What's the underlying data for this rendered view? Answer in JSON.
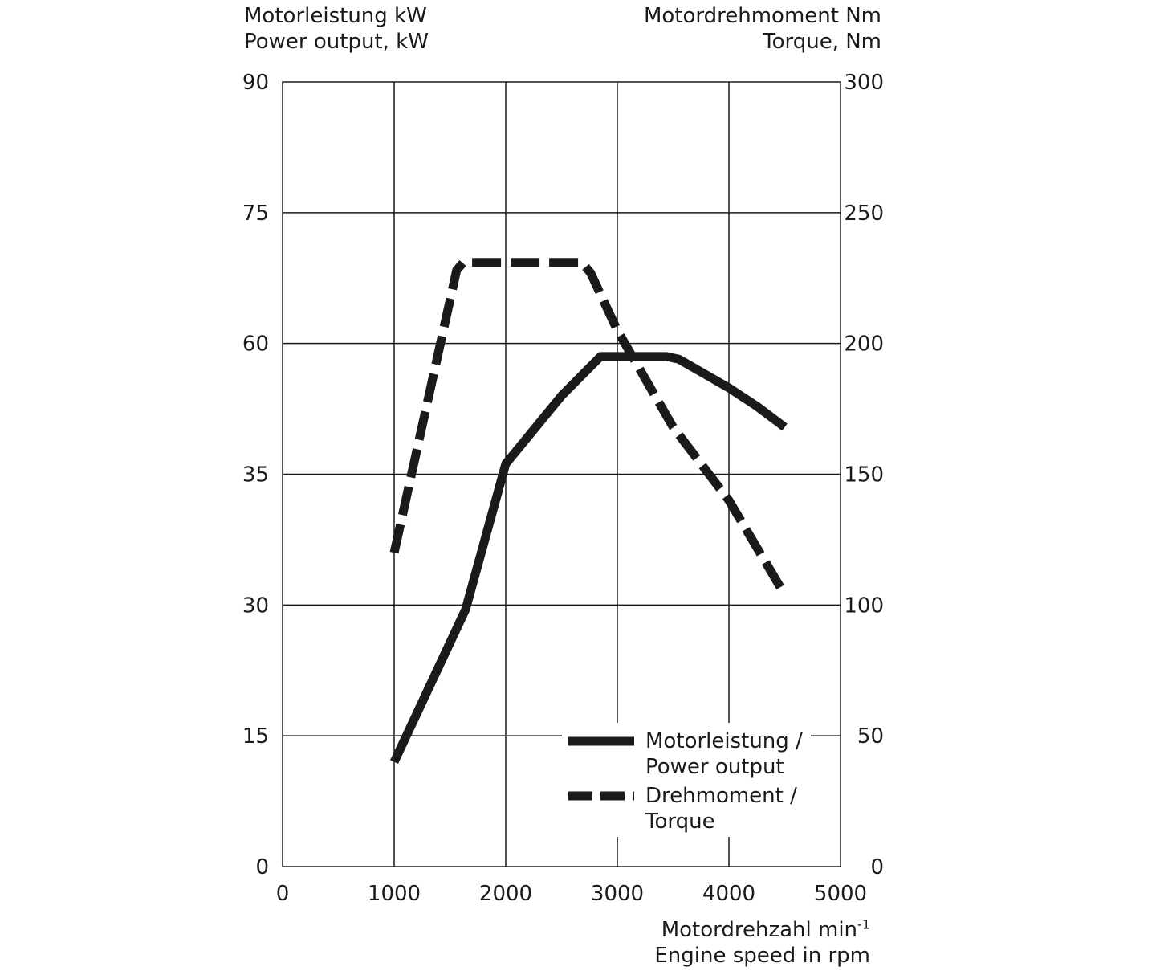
{
  "chart_data": {
    "type": "line",
    "y_left_title": [
      "Motorleistung kW",
      "Power output, kW"
    ],
    "y_right_title": [
      "Motordrehmoment Nm",
      "Torque, Nm"
    ],
    "x_title_line1": "Motordrehzahl min",
    "x_title_sup": "-1",
    "x_title_line2": "Engine speed in rpm",
    "x_ticks": [
      "0",
      "1000",
      "2000",
      "3000",
      "4000",
      "5000"
    ],
    "y_left_ticks": [
      "0",
      "15",
      "30",
      "35",
      "60",
      "75",
      "90"
    ],
    "y_right_ticks": [
      "0",
      "50",
      "100",
      "150",
      "200",
      "250",
      "300"
    ],
    "x_range": [
      0,
      5000
    ],
    "y_right_range": [
      0,
      300
    ],
    "grid": true,
    "legend_position": "bottom-right",
    "series": [
      {
        "name": "Motorleistung / Power output",
        "legend_lines": [
          "Motorleistung /",
          "Power output"
        ],
        "style": "solid",
        "color": "#1a1a1a",
        "axis": "left",
        "points": [
          [
            1000,
            12
          ],
          [
            1640,
            29.5
          ],
          [
            2000,
            37
          ],
          [
            2500,
            50
          ],
          [
            2850,
            57.5
          ],
          [
            3440,
            57.5
          ],
          [
            3550,
            57
          ],
          [
            4000,
            51.5
          ],
          [
            4250,
            48
          ],
          [
            4500,
            44
          ]
        ]
      },
      {
        "name": "Drehmoment / Torque",
        "legend_lines": [
          "Drehmoment /",
          "Torque"
        ],
        "style": "dashed",
        "color": "#1a1a1a",
        "axis": "right",
        "points": [
          [
            1000,
            120
          ],
          [
            1560,
            228
          ],
          [
            1620,
            231
          ],
          [
            2680,
            231
          ],
          [
            2760,
            227
          ],
          [
            3000,
            205
          ],
          [
            3500,
            168
          ],
          [
            4000,
            140
          ],
          [
            4500,
            104
          ]
        ]
      }
    ]
  }
}
